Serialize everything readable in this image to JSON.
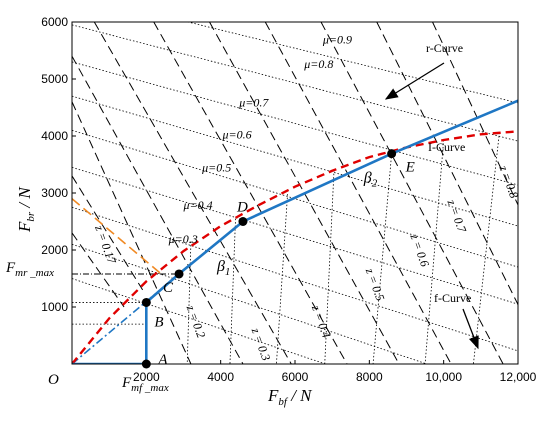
{
  "chart_data": {
    "type": "line",
    "xlabel_main": "F",
    "xlabel_sub": "bf",
    "xlabel_unit": " / N",
    "ylabel_main": "F",
    "ylabel_sub": "br",
    "ylabel_unit": " / N",
    "xlim": [
      0,
      12000
    ],
    "ylim": [
      0,
      6000
    ],
    "x_ticks": [
      {
        "value": 2000,
        "label": "2000"
      },
      {
        "value": 4000,
        "label": "4000"
      },
      {
        "value": 6000,
        "label": "6000"
      },
      {
        "value": 8000,
        "label": "8000"
      },
      {
        "value": 10000,
        "label": "10,000"
      },
      {
        "value": 12000,
        "label": "12,000"
      }
    ],
    "y_ticks": [
      {
        "value": 1000,
        "label": "1000"
      },
      {
        "value": 2000,
        "label": "2000"
      },
      {
        "value": 3000,
        "label": "3000"
      },
      {
        "value": 4000,
        "label": "4000"
      },
      {
        "value": 5000,
        "label": "5000"
      },
      {
        "value": 6000,
        "label": "6000"
      }
    ],
    "origin_label": "O",
    "mu_lines": [
      {
        "mu": 0.3,
        "label": "μ=0.3",
        "lx": 2600,
        "ly": 2120
      },
      {
        "mu": 0.4,
        "label": "μ=0.4",
        "lx": 3000,
        "ly": 2720
      },
      {
        "mu": 0.5,
        "label": "μ=0.5",
        "lx": 3500,
        "ly": 3380
      },
      {
        "mu": 0.6,
        "label": "μ=0.6",
        "lx": 4050,
        "ly": 3960
      },
      {
        "mu": 0.7,
        "label": "μ=0.7",
        "lx": 4500,
        "ly": 4520
      },
      {
        "mu": 0.8,
        "label": "μ=0.8",
        "lx": 6250,
        "ly": 5190
      },
      {
        "mu": 0.9,
        "label": "μ=0.9",
        "lx": 6750,
        "ly": 5620
      }
    ],
    "z_lines": [
      {
        "z": 0.17,
        "label": "z = 0.17",
        "lx": 620,
        "ly": 2400
      },
      {
        "z": 0.2,
        "label": "z = 0.2",
        "lx": 3080,
        "ly": 1000
      },
      {
        "z": 0.3,
        "label": "z = 0.3",
        "lx": 4830,
        "ly": 600
      },
      {
        "z": 0.4,
        "label": "z = 0.4",
        "lx": 6450,
        "ly": 1000
      },
      {
        "z": 0.5,
        "label": "z = 0.5",
        "lx": 7900,
        "ly": 1650
      },
      {
        "z": 0.6,
        "label": "z = 0.6",
        "lx": 9100,
        "ly": 2250
      },
      {
        "z": 0.7,
        "label": "z = 0.7",
        "lx": 10100,
        "ly": 2850
      },
      {
        "z": 0.8,
        "label": "z = 0.8",
        "lx": 11500,
        "ly": 3450
      }
    ],
    "i_curve": {
      "name": "I-Curve",
      "x": [
        0,
        1000,
        2000,
        3000,
        4000,
        5000,
        6000,
        7000,
        8000,
        9000,
        10000,
        11000,
        12000
      ],
      "y": [
        0,
        800,
        1450,
        1980,
        2420,
        2780,
        3110,
        3390,
        3630,
        3800,
        3930,
        4030,
        4080
      ]
    },
    "beta_line": {
      "x": [
        0,
        0,
        0
      ],
      "y": [
        0,
        0,
        0
      ],
      "points": [
        {
          "name": "A",
          "x": 2000,
          "y": 0
        },
        {
          "name": "B",
          "x": 2000,
          "y": 1080
        },
        {
          "name": "C",
          "x": 2880,
          "y": 1580
        },
        {
          "name": "D",
          "x": 4600,
          "y": 2500
        },
        {
          "name": "E",
          "x": 8600,
          "y": 3690
        },
        {
          "name": "end",
          "x": 12000,
          "y": 4620
        }
      ]
    },
    "beta_labels": [
      {
        "label": "β",
        "sub": "1",
        "x": 3900,
        "y": 1630
      },
      {
        "label": "β",
        "sub": "2",
        "x": 7850,
        "y": 3180
      }
    ],
    "point_labels": [
      {
        "name": "A",
        "dx": 12,
        "dy": 0
      },
      {
        "name": "B",
        "dx": 8,
        "dy": 24
      },
      {
        "name": "C",
        "dx": -16,
        "dy": 18
      },
      {
        "name": "D",
        "dx": -6,
        "dy": -10
      },
      {
        "name": "E",
        "dx": 14,
        "dy": 18
      }
    ],
    "dashdot_line": {
      "x": [
        0,
        2880
      ],
      "y": [
        0,
        1580
      ]
    },
    "f_mr_max": {
      "label_main": "F",
      "label_sub": "mr _max",
      "y": 1580
    },
    "f_mf_max": {
      "label_main": "F",
      "label_sub": "mf _max",
      "x": 2000
    },
    "orange_line": {
      "x": [
        0,
        2400
      ],
      "y": [
        2900,
        1580
      ],
      "label": "z = 0.17"
    },
    "r_curve": {
      "label": "r-Curve"
    },
    "f_curve": {
      "label": "f-Curve"
    },
    "colors": {
      "blue": "#1f77c4",
      "red": "#e00000",
      "orange": "#f08a24",
      "black": "#000000"
    }
  }
}
